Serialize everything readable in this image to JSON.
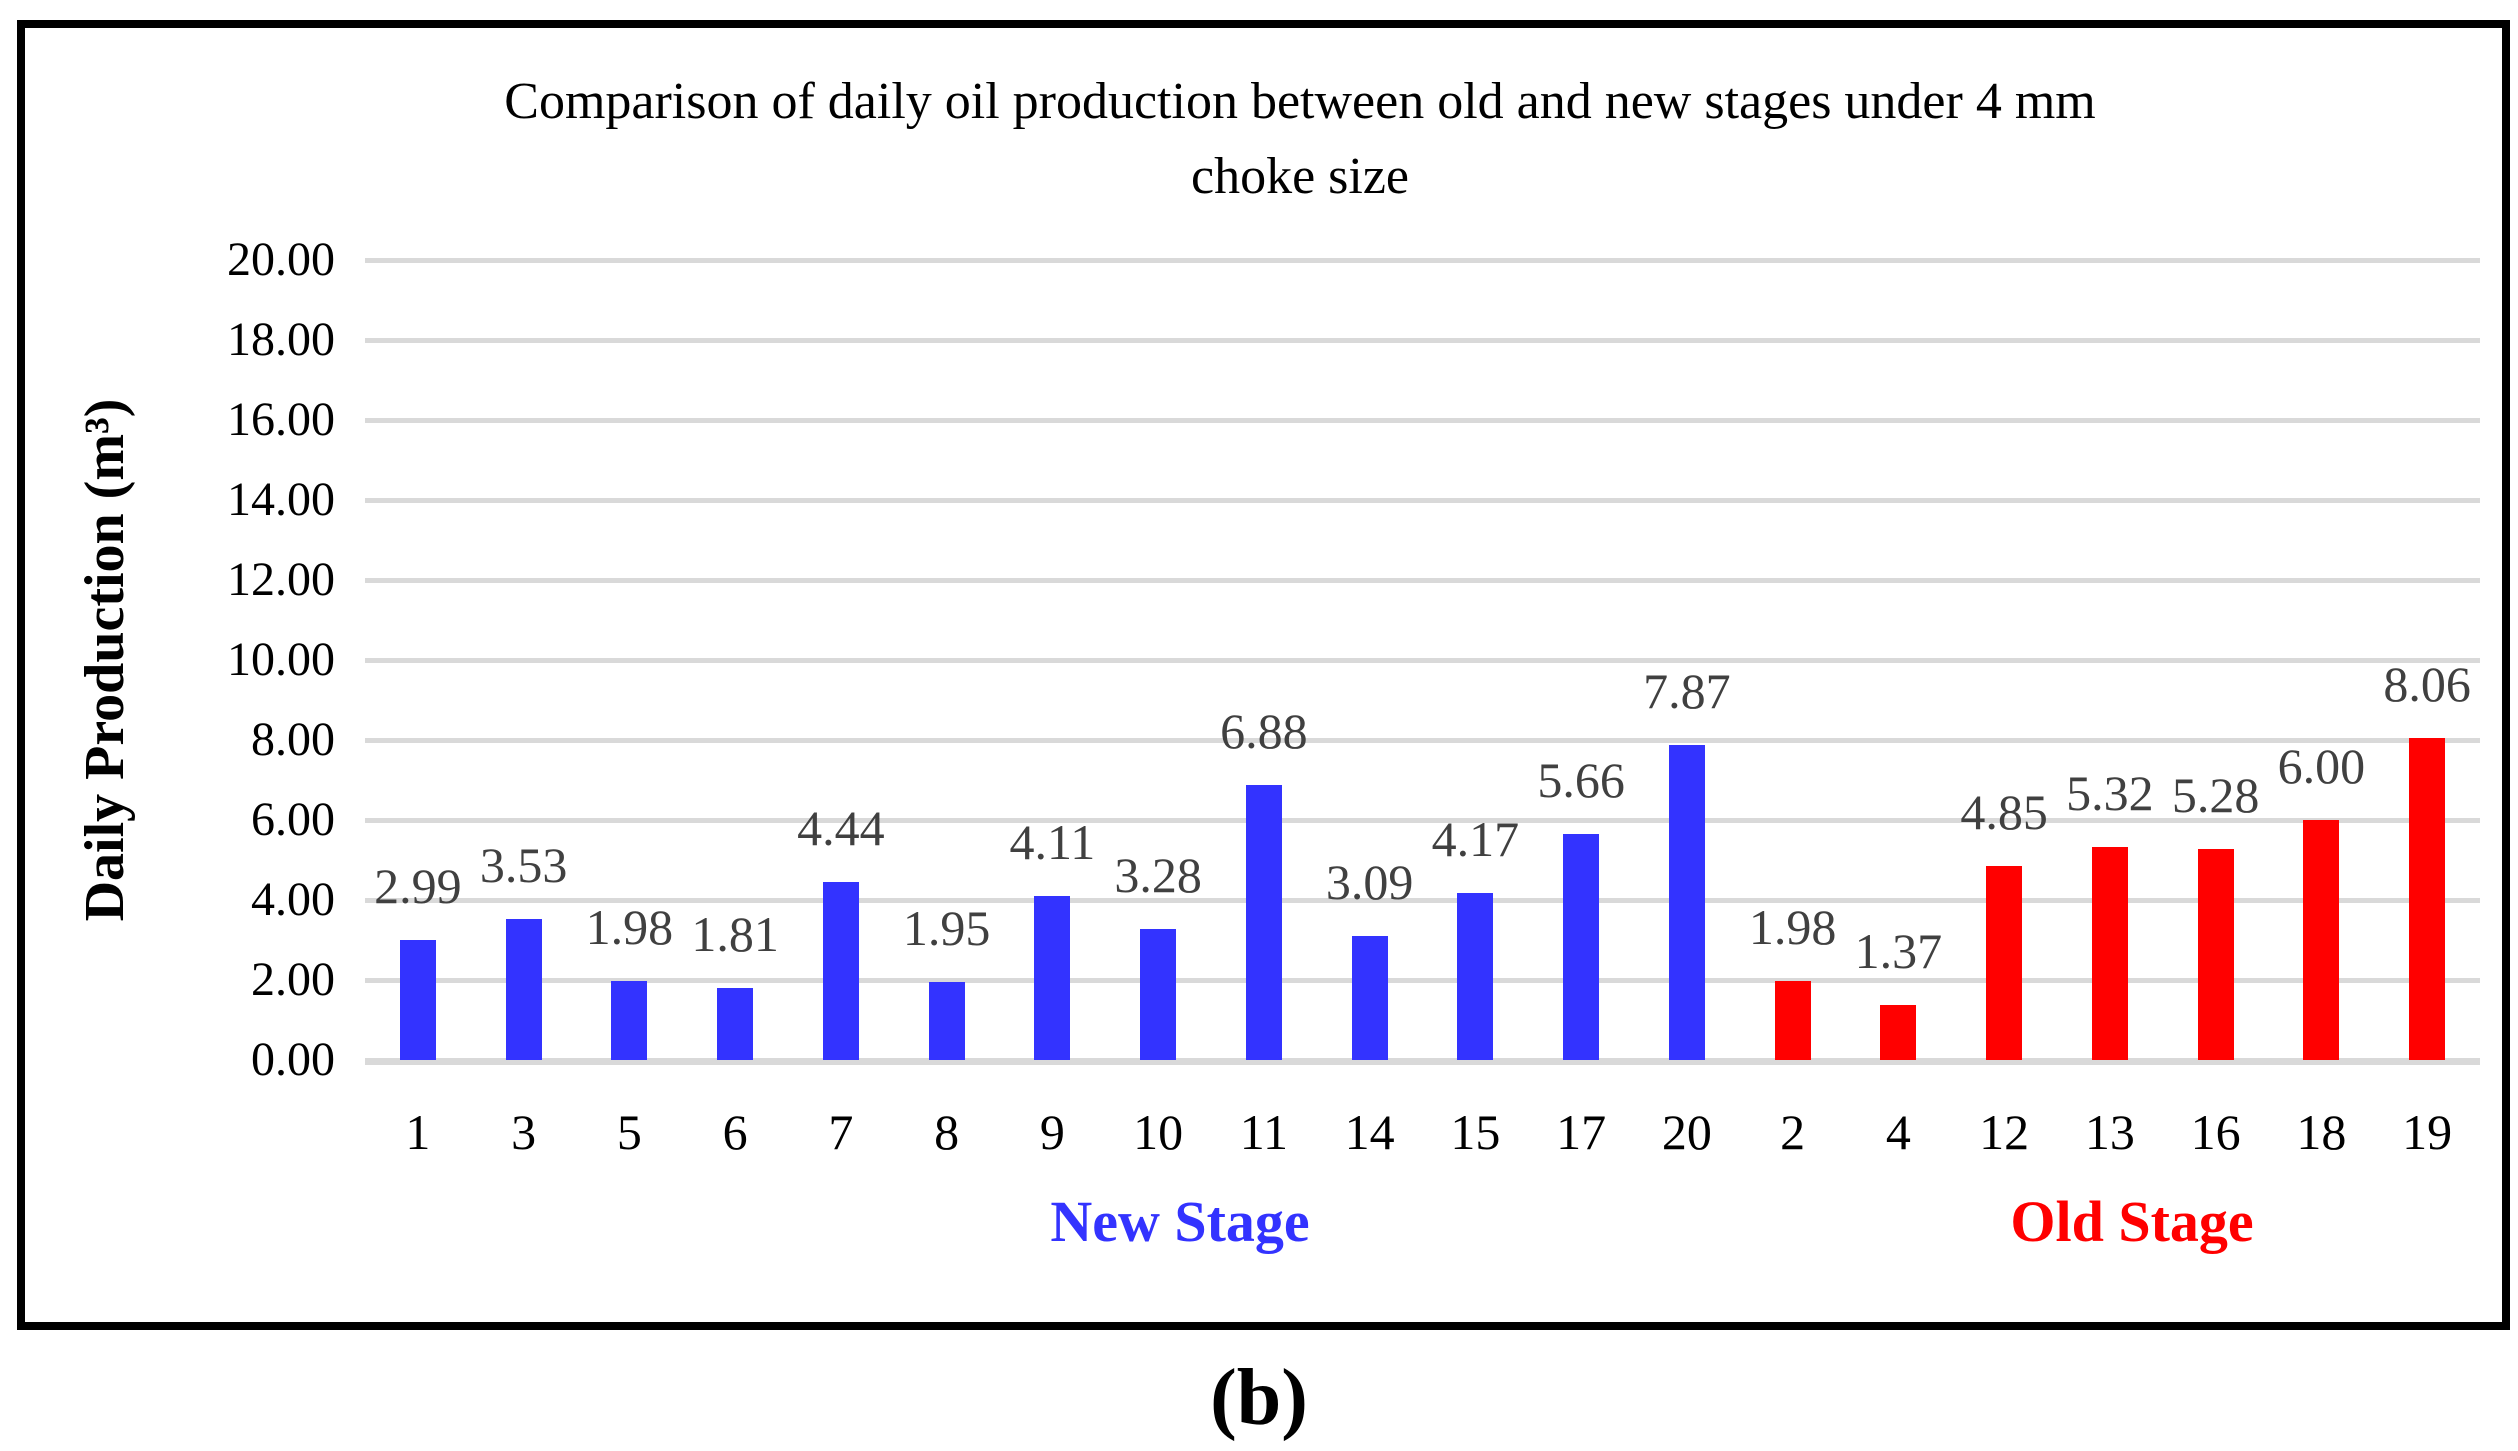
{
  "figure": {
    "caption": "(b)"
  },
  "colors": {
    "new_stage_bar": "#3333ff",
    "old_stage_bar": "#ff0000",
    "data_label": "#404040",
    "gridline": "#d9d9d9",
    "border": "#000000",
    "new_stage_text": "#3333ff",
    "old_stage_text": "#ff0000"
  },
  "chart_data": {
    "type": "bar",
    "title": "Comparison of daily oil production between old and new stages under 4 mm choke size",
    "title_lines": [
      "Comparison of daily oil production between old and new stages under 4 mm",
      "choke size"
    ],
    "xlabel": "",
    "ylabel": "Daily Production (m³)",
    "ylim": [
      0,
      20
    ],
    "ytick_step": 2,
    "ytick_labels": [
      "20.00",
      "18.00",
      "16.00",
      "14.00",
      "12.00",
      "10.00",
      "8.00",
      "6.00",
      "4.00",
      "2.00",
      "0.00"
    ],
    "grid": true,
    "legend_position": "none",
    "groups": [
      {
        "name": "New Stage",
        "color": "#3333ff",
        "text_color": "#3333ff",
        "count": 13
      },
      {
        "name": "Old Stage",
        "color": "#ff0000",
        "text_color": "#ff0000",
        "count": 7
      }
    ],
    "categories": [
      "1",
      "3",
      "5",
      "6",
      "7",
      "8",
      "9",
      "10",
      "11",
      "14",
      "15",
      "17",
      "20",
      "2",
      "4",
      "12",
      "13",
      "16",
      "18",
      "19"
    ],
    "values": [
      2.99,
      3.53,
      1.98,
      1.81,
      4.44,
      1.95,
      4.11,
      3.28,
      6.88,
      3.09,
      4.17,
      5.66,
      7.87,
      1.98,
      1.37,
      4.85,
      5.32,
      5.28,
      6.0,
      8.06
    ],
    "bars": [
      {
        "category": "1",
        "value": 2.99,
        "label": "2.99",
        "group": "New Stage"
      },
      {
        "category": "3",
        "value": 3.53,
        "label": "3.53",
        "group": "New Stage"
      },
      {
        "category": "5",
        "value": 1.98,
        "label": "1.98",
        "group": "New Stage"
      },
      {
        "category": "6",
        "value": 1.81,
        "label": "1.81",
        "group": "New Stage"
      },
      {
        "category": "7",
        "value": 4.44,
        "label": "4.44",
        "group": "New Stage"
      },
      {
        "category": "8",
        "value": 1.95,
        "label": "1.95",
        "group": "New Stage"
      },
      {
        "category": "9",
        "value": 4.11,
        "label": "4.11",
        "group": "New Stage"
      },
      {
        "category": "10",
        "value": 3.28,
        "label": "3.28",
        "group": "New Stage"
      },
      {
        "category": "11",
        "value": 6.88,
        "label": "6.88",
        "group": "New Stage"
      },
      {
        "category": "14",
        "value": 3.09,
        "label": "3.09",
        "group": "New Stage"
      },
      {
        "category": "15",
        "value": 4.17,
        "label": "4.17",
        "group": "New Stage"
      },
      {
        "category": "17",
        "value": 5.66,
        "label": "5.66",
        "group": "New Stage"
      },
      {
        "category": "20",
        "value": 7.87,
        "label": "7.87",
        "group": "New Stage"
      },
      {
        "category": "2",
        "value": 1.98,
        "label": "1.98",
        "group": "Old Stage"
      },
      {
        "category": "4",
        "value": 1.37,
        "label": "1.37",
        "group": "Old Stage"
      },
      {
        "category": "12",
        "value": 4.85,
        "label": "4.85",
        "group": "Old Stage"
      },
      {
        "category": "13",
        "value": 5.32,
        "label": "5.32",
        "group": "Old Stage"
      },
      {
        "category": "16",
        "value": 5.28,
        "label": "5.28",
        "group": "Old Stage"
      },
      {
        "category": "18",
        "value": 6.0,
        "label": "6.00",
        "group": "Old Stage"
      },
      {
        "category": "19",
        "value": 8.06,
        "label": "8.06",
        "group": "Old Stage"
      }
    ]
  }
}
